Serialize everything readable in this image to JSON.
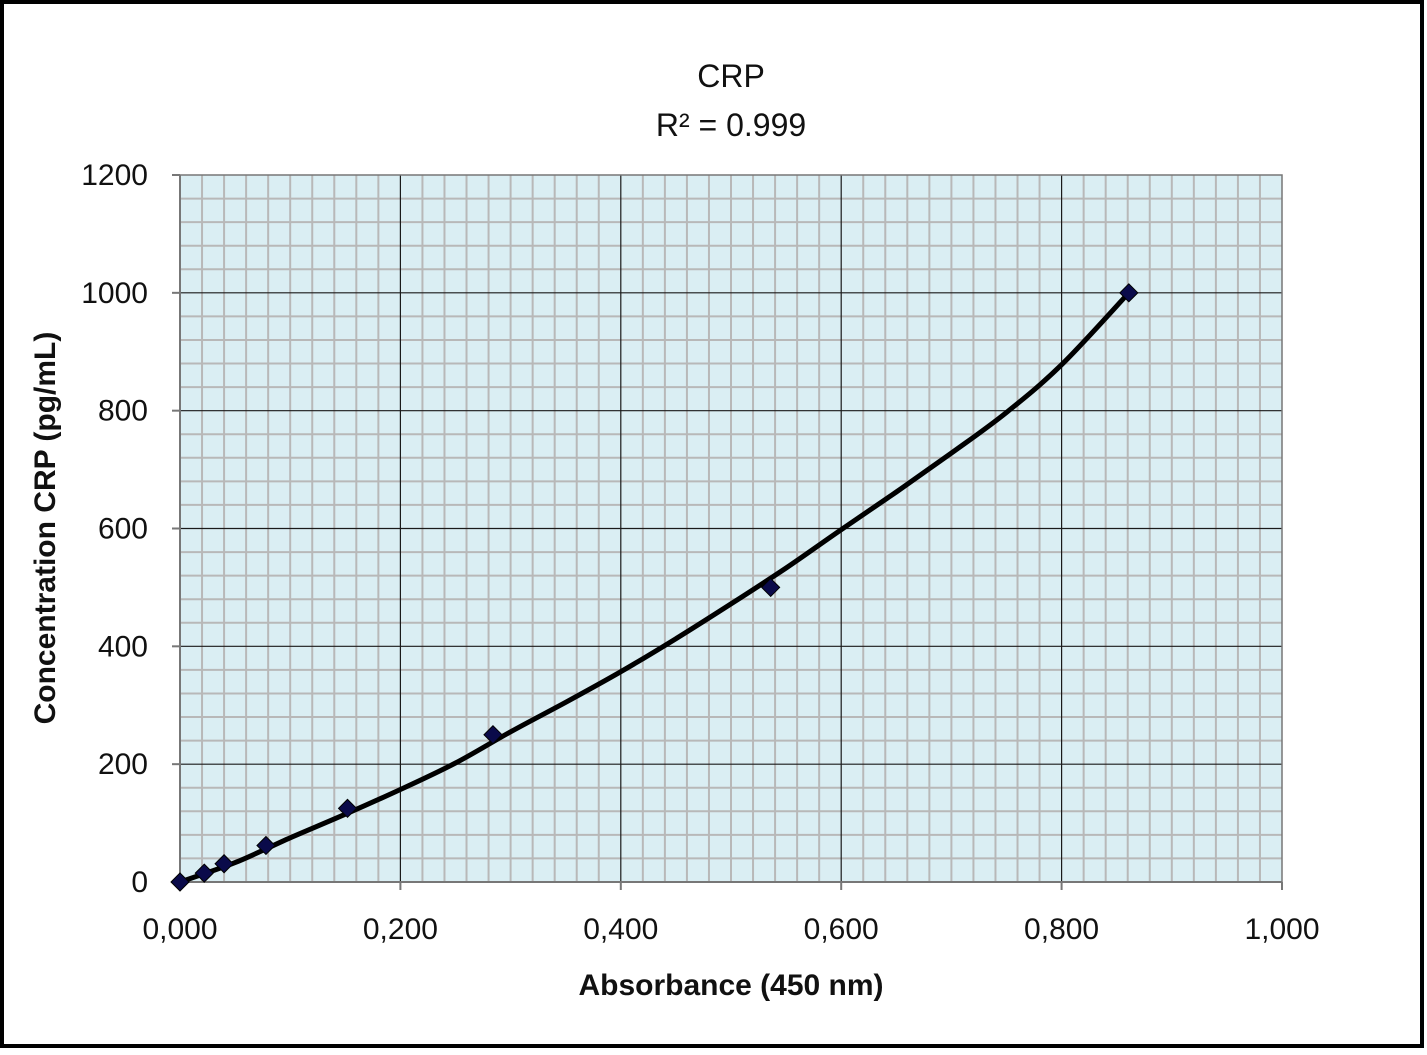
{
  "chart_data": {
    "type": "scatter",
    "title": "CRP",
    "subtitle": "R² = 0.999",
    "xlabel": "Absorbance (450 nm)",
    "ylabel": "Concentration CRP (pg/mL)",
    "xlim": [
      0,
      1.0
    ],
    "ylim": [
      0,
      1200
    ],
    "x_ticks": [
      0,
      0.2,
      0.4,
      0.6,
      0.8,
      1.0
    ],
    "x_tick_labels": [
      "0,000",
      "0,200",
      "0,400",
      "0,600",
      "0,800",
      "1,000"
    ],
    "y_ticks": [
      0,
      200,
      400,
      600,
      800,
      1000,
      1200
    ],
    "y_tick_labels": [
      "0",
      "200",
      "400",
      "600",
      "800",
      "1000",
      "1200"
    ],
    "grid": true,
    "legend": "none",
    "series": [
      {
        "type": "scatter",
        "marker": "diamond",
        "color": "#0a0a4a",
        "points": [
          {
            "x": 0.0,
            "y": 0
          },
          {
            "x": 0.022,
            "y": 15
          },
          {
            "x": 0.04,
            "y": 31
          },
          {
            "x": 0.078,
            "y": 62
          },
          {
            "x": 0.152,
            "y": 125
          },
          {
            "x": 0.284,
            "y": 250
          },
          {
            "x": 0.536,
            "y": 500
          },
          {
            "x": 0.861,
            "y": 1000
          }
        ]
      },
      {
        "type": "line",
        "trendline": true,
        "color": "#000000",
        "points": [
          {
            "x": 0.0,
            "y": 0
          },
          {
            "x": 0.05,
            "y": 33
          },
          {
            "x": 0.1,
            "y": 75
          },
          {
            "x": 0.15,
            "y": 115
          },
          {
            "x": 0.2,
            "y": 157
          },
          {
            "x": 0.25,
            "y": 202
          },
          {
            "x": 0.3,
            "y": 255
          },
          {
            "x": 0.35,
            "y": 305
          },
          {
            "x": 0.4,
            "y": 357
          },
          {
            "x": 0.45,
            "y": 413
          },
          {
            "x": 0.5,
            "y": 472
          },
          {
            "x": 0.55,
            "y": 533
          },
          {
            "x": 0.6,
            "y": 598
          },
          {
            "x": 0.65,
            "y": 662
          },
          {
            "x": 0.7,
            "y": 728
          },
          {
            "x": 0.75,
            "y": 797
          },
          {
            "x": 0.8,
            "y": 878
          },
          {
            "x": 0.861,
            "y": 1000
          }
        ]
      }
    ]
  },
  "colors": {
    "plot_background": "#daeef3",
    "major_grid": "#1a1a1a",
    "minor_grid": "#b8b8b8",
    "axis": "#777777",
    "frame": "#000000",
    "marker": "#0a0a4a",
    "trendline": "#000000"
  }
}
